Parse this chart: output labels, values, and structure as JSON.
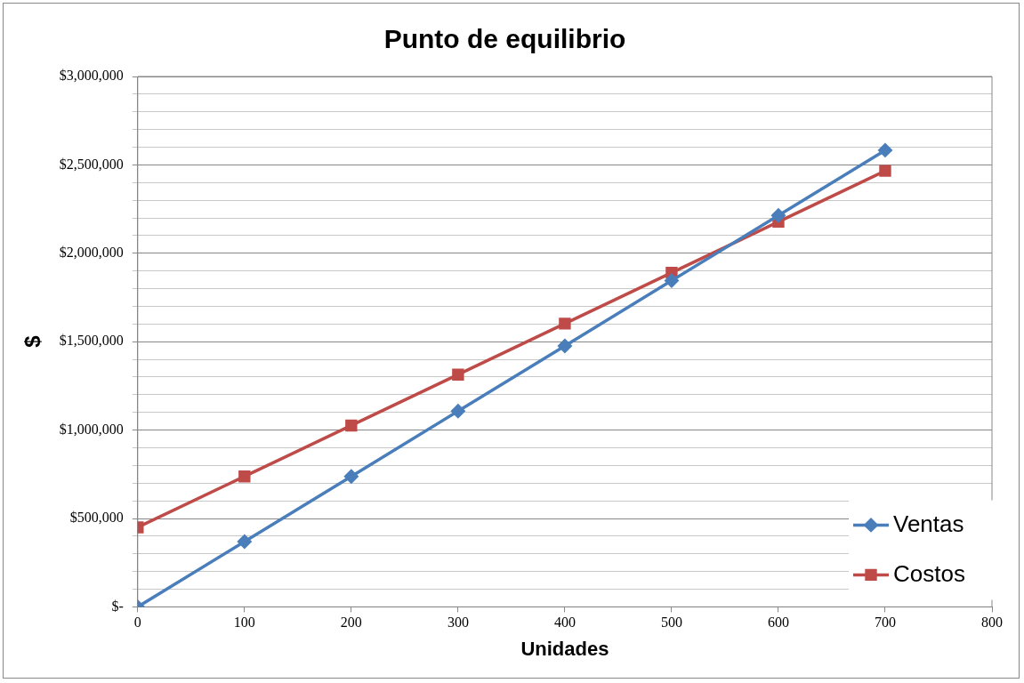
{
  "chart_data": {
    "type": "line",
    "title": "Punto de equilibrio",
    "xlabel": "Unidades",
    "ylabel": "$",
    "x": [
      0,
      100,
      200,
      300,
      400,
      500,
      600,
      700
    ],
    "series": [
      {
        "name": "Ventas",
        "color": "#4a7ebb",
        "marker": "diamond",
        "values": [
          0,
          369000,
          738000,
          1107000,
          1476000,
          1845000,
          2214000,
          2583000
        ]
      },
      {
        "name": "Costos",
        "color": "#be4b48",
        "marker": "square",
        "values": [
          450000,
          738000,
          1026000,
          1314000,
          1602000,
          1890000,
          2178000,
          2466000
        ]
      }
    ],
    "xlim": [
      0,
      800
    ],
    "xticks": [
      0,
      100,
      200,
      300,
      400,
      500,
      600,
      700,
      800
    ],
    "ylim": [
      0,
      3000000
    ],
    "yticks": [
      {
        "value": 0,
        "label": "$-"
      },
      {
        "value": 100000,
        "label": null
      },
      {
        "value": 200000,
        "label": null
      },
      {
        "value": 300000,
        "label": null
      },
      {
        "value": 400000,
        "label": null
      },
      {
        "value": 500000,
        "label": "$500,000"
      },
      {
        "value": 600000,
        "label": null
      },
      {
        "value": 700000,
        "label": null
      },
      {
        "value": 800000,
        "label": null
      },
      {
        "value": 900000,
        "label": null
      },
      {
        "value": 1000000,
        "label": "$1,000,000"
      },
      {
        "value": 1100000,
        "label": null
      },
      {
        "value": 1200000,
        "label": null
      },
      {
        "value": 1300000,
        "label": null
      },
      {
        "value": 1400000,
        "label": null
      },
      {
        "value": 1500000,
        "label": "$1,500,000"
      },
      {
        "value": 1600000,
        "label": null
      },
      {
        "value": 1700000,
        "label": null
      },
      {
        "value": 1800000,
        "label": null
      },
      {
        "value": 1900000,
        "label": null
      },
      {
        "value": 2000000,
        "label": "$2,000,000"
      },
      {
        "value": 2100000,
        "label": null
      },
      {
        "value": 2200000,
        "label": null
      },
      {
        "value": 2300000,
        "label": null
      },
      {
        "value": 2400000,
        "label": null
      },
      {
        "value": 2500000,
        "label": "$2,500,000"
      },
      {
        "value": 2600000,
        "label": null
      },
      {
        "value": 2700000,
        "label": null
      },
      {
        "value": 2800000,
        "label": null
      },
      {
        "value": 2900000,
        "label": null
      },
      {
        "value": 3000000,
        "label": "$3,000,000"
      }
    ],
    "grid": "y",
    "legend": "bottom right",
    "line_style": "solid"
  }
}
